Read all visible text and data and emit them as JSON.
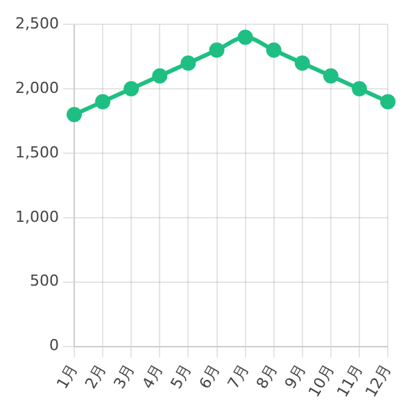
{
  "chart_data": {
    "type": "line",
    "categories": [
      "1月",
      "2月",
      "3月",
      "4月",
      "5月",
      "6月",
      "7月",
      "8月",
      "9月",
      "10月",
      "11月",
      "12月"
    ],
    "series": [
      {
        "color": "#1fbf83",
        "values": [
          1800,
          1900,
          2000,
          2100,
          2200,
          2300,
          2400,
          2300,
          2200,
          2100,
          2000,
          1900
        ]
      }
    ],
    "ylim": [
      0,
      2500
    ],
    "yticks": [
      0,
      500,
      {
        "value": 1000,
        "label": "1,000"
      },
      {
        "value": 1500,
        "label": "1,500"
      },
      {
        "value": 2000,
        "label": "2,000"
      },
      {
        "value": 2500,
        "label": "2,500"
      }
    ],
    "grid": true,
    "marker": "circle",
    "line_style": "solid",
    "legend": false
  }
}
